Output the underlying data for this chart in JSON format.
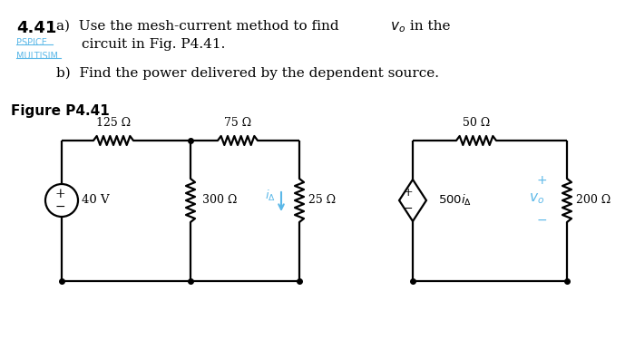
{
  "title_num": "4.41",
  "pspice_label": "PSPICE",
  "multisim_label": "MULTISIM",
  "figure_label": "Figure P4.41",
  "r1": "125 Ω",
  "r2": "75 Ω",
  "r3": "300 Ω",
  "r4": "25 Ω",
  "r5": "50 Ω",
  "r6": "200 Ω",
  "vs": "40 V",
  "bg_color": "#ffffff",
  "line_color": "#000000",
  "pspice_color": "#5bb8e8",
  "arrow_color": "#5bb8e8",
  "vo_color": "#5bb8e8",
  "pm_color": "#5bb8e8"
}
